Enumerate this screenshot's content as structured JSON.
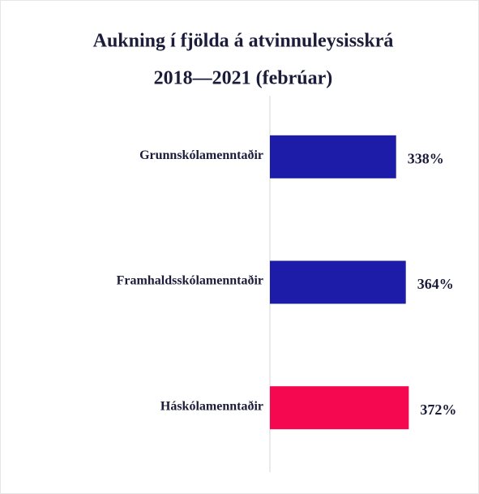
{
  "chart_data": {
    "type": "bar",
    "orientation": "horizontal",
    "title": [
      "Aukning í fjölda á atvinnuleysisskrá",
      "2018—2021 (febrúar)"
    ],
    "categories": [
      "Grunnskólamenntaðir",
      "Framhaldsskólamenntaðir",
      "Háskólamenntaðir"
    ],
    "values": [
      338,
      364,
      372
    ],
    "value_labels": [
      "338%",
      "364%",
      "372%"
    ],
    "colors": [
      "#1c1ca8",
      "#1c1ca8",
      "#f5084f"
    ],
    "xlim": [
      0,
      560
    ]
  }
}
